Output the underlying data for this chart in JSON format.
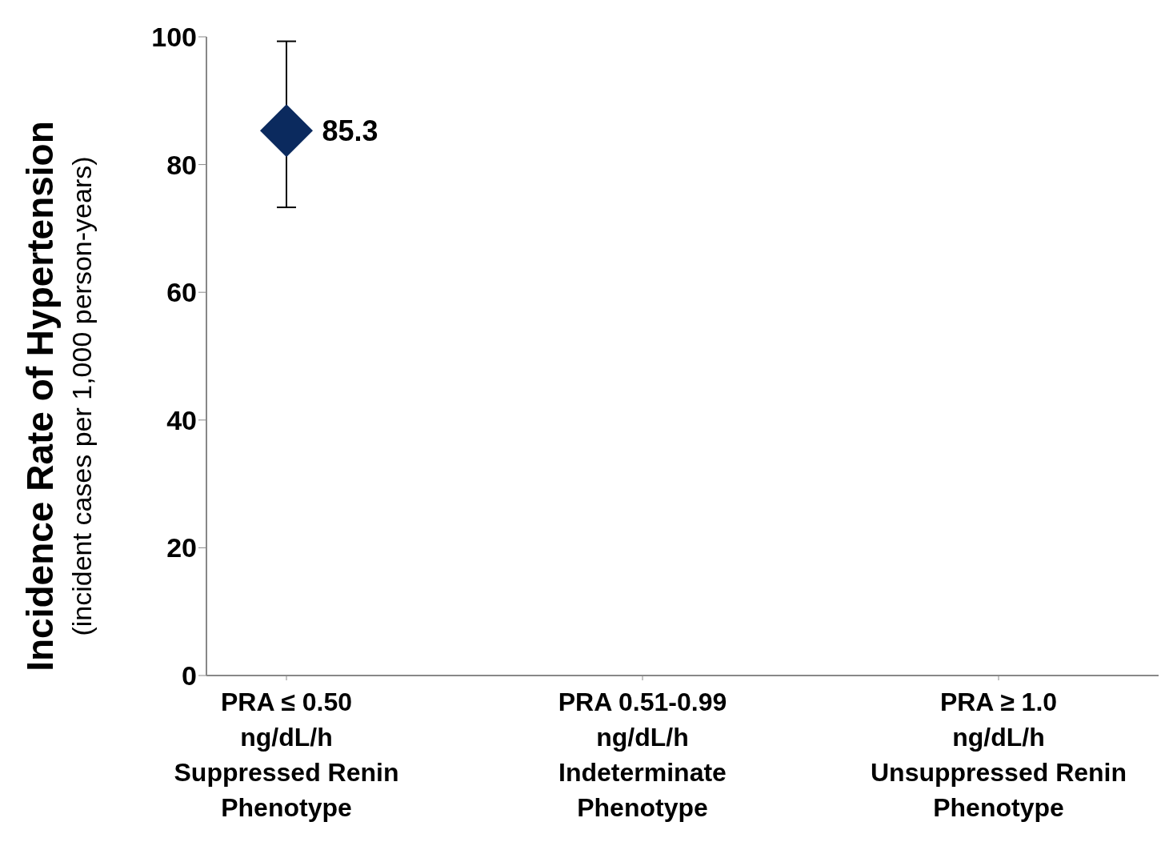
{
  "chart_data": {
    "type": "scatter",
    "ylabel": "Incidence Rate of Hypertension\n(incident cases per 1,000 person-years)",
    "categories": [
      "PRA ≤ 0.50\nng/dL/h\n\nSuppressed Renin\nPhenotype",
      "PRA 0.51-0.99\nng/dL/h\n\nIndeterminate\nPhenotype",
      "PRA ≥ 1.0\nng/dL/h\n\nUnsuppressed Renin\nPhenotype"
    ],
    "values": [
      85.3,
      null,
      null
    ],
    "errors": [
      [
        73.3,
        99.3
      ],
      null,
      null
    ],
    "color": "#0b2a5e",
    "marker": "diamond",
    "data_labels": true,
    "ylim": [
      0,
      100
    ],
    "yticks": [
      0,
      20,
      40,
      60,
      80,
      100
    ],
    "grid": false
  }
}
